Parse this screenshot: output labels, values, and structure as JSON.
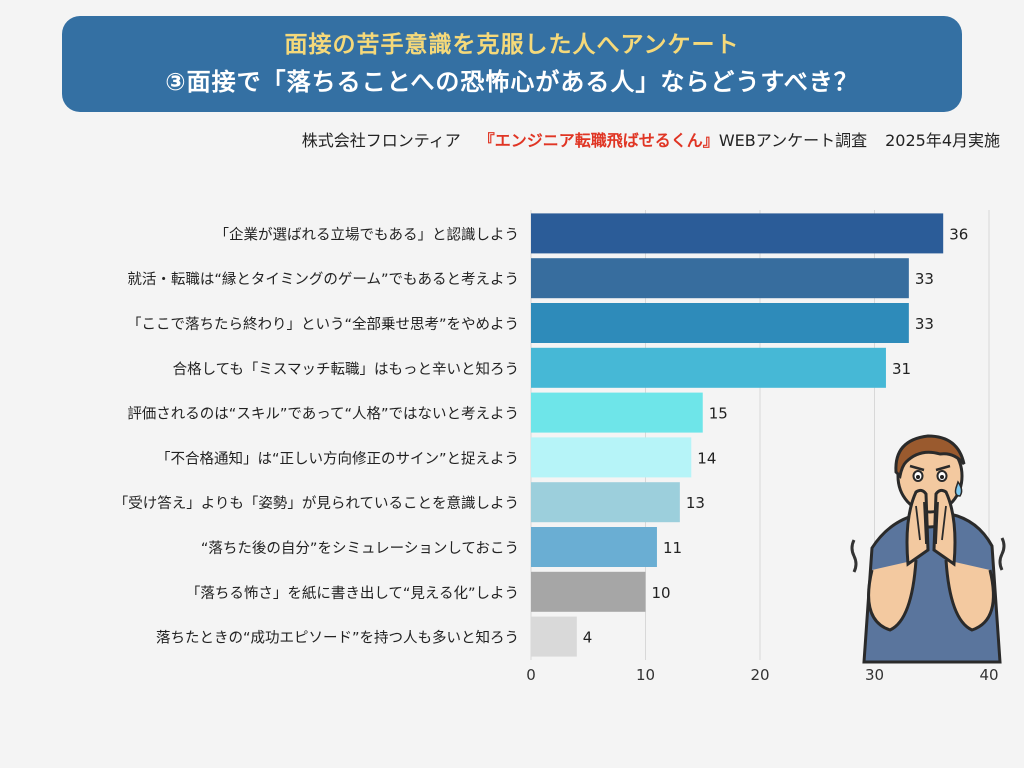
{
  "header": {
    "line1": "面接の苦手意識を克服した人へアンケート",
    "line2": "③面接で「落ちることへの恐怖心がある人」ならどうすべき？"
  },
  "source": {
    "company": "株式会社フロンティア",
    "brand": "『エンジニア転職飛ばせるくん』",
    "survey": "WEBアンケート調査",
    "date": "2025年4月実施"
  },
  "chart_data": {
    "type": "bar",
    "orientation": "horizontal",
    "title": "③面接で「落ちることへの恐怖心がある人」ならどうすべき？",
    "categories": [
      "「企業が選ばれる立場でもある」と認識しよう",
      "就活・転職は“縁とタイミングのゲーム”でもあると考えよう",
      "「ここで落ちたら終わり」という“全部乗せ思考”をやめよう",
      "合格しても「ミスマッチ転職」はもっと辛いと知ろう",
      "評価されるのは“スキル”であって“人格”ではないと考えよう",
      "「不合格通知」は“正しい方向修正のサイン”と捉えよう",
      "「受け答え」よりも「姿勢」が見られていることを意識しよう",
      "“落ちた後の自分”をシミュレーションしておこう",
      "「落ちる怖さ」を紙に書き出して“見える化”しよう",
      "落ちたときの“成功エピソード”を持つ人も多いと知ろう"
    ],
    "values": [
      36,
      33,
      33,
      31,
      15,
      14,
      13,
      11,
      10,
      4
    ],
    "colors": [
      "#2b5c98",
      "#376d9e",
      "#2e8bba",
      "#46b8d6",
      "#6ee5e9",
      "#b6f4f8",
      "#9ccfdc",
      "#6aaed3",
      "#a6a6a6",
      "#d9d9d9"
    ],
    "xlim": [
      0,
      40
    ],
    "xticks": [
      0,
      10,
      20,
      30,
      40
    ],
    "xlabel": "",
    "ylabel": "",
    "grid": true
  }
}
